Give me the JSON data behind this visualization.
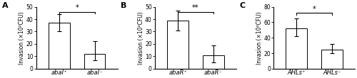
{
  "panels": [
    {
      "label": "A",
      "categories": [
        "abaI⁺",
        "abaI⁻"
      ],
      "values": [
        37,
        12
      ],
      "errors_hi": [
        7,
        10
      ],
      "errors_lo": [
        7,
        5
      ],
      "ylim": [
        0,
        50
      ],
      "yticks": [
        0,
        10,
        20,
        30,
        40,
        50
      ],
      "ylabel": "Invasion (×10²CFU)",
      "sig_text": "*",
      "sig_level": 46
    },
    {
      "label": "B",
      "categories": [
        "abaR⁺",
        "abaR⁻"
      ],
      "values": [
        39,
        11
      ],
      "errors_hi": [
        8,
        8
      ],
      "errors_lo": [
        8,
        6
      ],
      "ylim": [
        0,
        50
      ],
      "yticks": [
        0,
        10,
        20,
        30,
        40,
        50
      ],
      "ylabel": "Invasion (×10²CFU)",
      "sig_text": "**",
      "sig_level": 46
    },
    {
      "label": "C",
      "categories": [
        "AHLs⁺",
        "AHLs⁻"
      ],
      "values": [
        52,
        25
      ],
      "errors_hi": [
        13,
        7
      ],
      "errors_lo": [
        10,
        5
      ],
      "ylim": [
        0,
        80
      ],
      "yticks": [
        0,
        20,
        40,
        60,
        80
      ],
      "ylabel": "Invasion (×10²CFU)",
      "sig_text": "*",
      "sig_level": 72
    }
  ],
  "bar_color": "#ffffff",
  "bar_edgecolor": "#000000",
  "bar_width": 0.6,
  "background_color": "#ffffff",
  "fontsize_ylabel": 5.5,
  "fontsize_panel": 8,
  "fontsize_tick": 5.5,
  "fontsize_xtick": 6.0,
  "fontsize_sig": 7
}
